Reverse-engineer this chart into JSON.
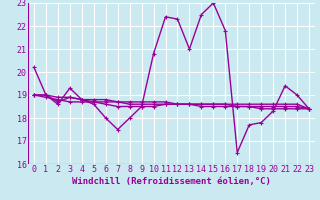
{
  "background_color": "#cbe9f0",
  "grid_color": "#ffffff",
  "line_color": "#990099",
  "xlabel": "Windchill (Refroidissement éolien,°C)",
  "xlim": [
    -0.5,
    23.5
  ],
  "ylim": [
    16,
    23
  ],
  "yticks": [
    16,
    17,
    18,
    19,
    20,
    21,
    22,
    23
  ],
  "xticks": [
    0,
    1,
    2,
    3,
    4,
    5,
    6,
    7,
    8,
    9,
    10,
    11,
    12,
    13,
    14,
    15,
    16,
    17,
    18,
    19,
    20,
    21,
    22,
    23
  ],
  "series": [
    [
      20.2,
      19.0,
      18.6,
      19.3,
      18.8,
      18.6,
      18.0,
      17.5,
      18.0,
      18.5,
      20.8,
      22.4,
      22.3,
      21.0,
      22.5,
      23.0,
      21.8,
      16.5,
      17.7,
      17.8,
      18.3,
      19.4,
      19.0,
      18.4
    ],
    [
      19.0,
      19.0,
      18.7,
      18.9,
      18.8,
      18.7,
      18.6,
      18.5,
      18.5,
      18.5,
      18.5,
      18.6,
      18.6,
      18.6,
      18.6,
      18.6,
      18.6,
      18.5,
      18.5,
      18.4,
      18.4,
      18.4,
      18.4,
      18.4
    ],
    [
      19.0,
      19.0,
      18.9,
      18.9,
      18.8,
      18.8,
      18.8,
      18.7,
      18.6,
      18.6,
      18.6,
      18.6,
      18.6,
      18.6,
      18.5,
      18.5,
      18.5,
      18.5,
      18.5,
      18.5,
      18.5,
      18.5,
      18.5,
      18.4
    ],
    [
      19.0,
      18.9,
      18.8,
      18.7,
      18.7,
      18.7,
      18.7,
      18.7,
      18.7,
      18.7,
      18.7,
      18.7,
      18.6,
      18.6,
      18.6,
      18.6,
      18.6,
      18.6,
      18.6,
      18.6,
      18.6,
      18.6,
      18.6,
      18.4
    ]
  ],
  "tick_fontsize": 6,
  "xlabel_fontsize": 6.5
}
